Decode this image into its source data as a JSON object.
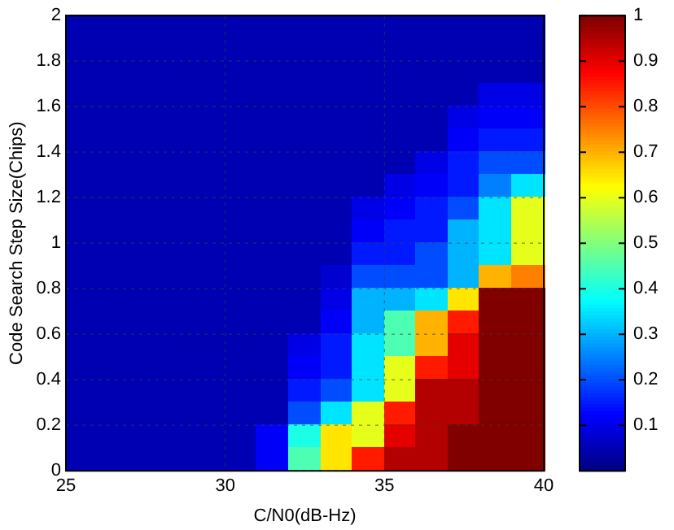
{
  "chart_data": {
    "type": "heatmap",
    "xlabel": "C/N0(dB-Hz)",
    "ylabel": "Code Search Step Size(Chips)",
    "x": [
      25.5,
      26.5,
      27.5,
      28.5,
      29.5,
      30.5,
      31.5,
      32.5,
      33.5,
      34.5,
      35.5,
      36.5,
      37.5,
      38.5,
      39.5
    ],
    "y": [
      1.95,
      1.85,
      1.75,
      1.65,
      1.55,
      1.45,
      1.35,
      1.25,
      1.15,
      1.05,
      0.95,
      0.85,
      0.75,
      0.65,
      0.55,
      0.45,
      0.35,
      0.25,
      0.15,
      0.05
    ],
    "cells": [
      [
        0.05,
        0.05,
        0.05,
        0.05,
        0.05,
        0.05,
        0.05,
        0.05,
        0.05,
        0.05,
        0.05,
        0.05,
        0.05,
        0.05,
        0.05
      ],
      [
        0.05,
        0.05,
        0.05,
        0.05,
        0.05,
        0.05,
        0.05,
        0.05,
        0.05,
        0.05,
        0.05,
        0.05,
        0.05,
        0.05,
        0.05
      ],
      [
        0.05,
        0.05,
        0.05,
        0.05,
        0.05,
        0.05,
        0.05,
        0.05,
        0.05,
        0.05,
        0.05,
        0.05,
        0.05,
        0.05,
        0.05
      ],
      [
        0.05,
        0.05,
        0.05,
        0.05,
        0.05,
        0.05,
        0.05,
        0.05,
        0.05,
        0.05,
        0.05,
        0.05,
        0.05,
        0.1,
        0.1
      ],
      [
        0.05,
        0.05,
        0.05,
        0.05,
        0.05,
        0.05,
        0.05,
        0.05,
        0.05,
        0.05,
        0.05,
        0.05,
        0.1,
        0.12,
        0.12
      ],
      [
        0.05,
        0.05,
        0.05,
        0.05,
        0.05,
        0.05,
        0.05,
        0.05,
        0.05,
        0.05,
        0.05,
        0.05,
        0.12,
        0.15,
        0.15
      ],
      [
        0.05,
        0.05,
        0.05,
        0.05,
        0.05,
        0.05,
        0.05,
        0.05,
        0.05,
        0.05,
        0.05,
        0.1,
        0.15,
        0.2,
        0.2
      ],
      [
        0.05,
        0.05,
        0.05,
        0.05,
        0.05,
        0.05,
        0.05,
        0.05,
        0.05,
        0.05,
        0.1,
        0.12,
        0.15,
        0.25,
        0.35
      ],
      [
        0.05,
        0.05,
        0.05,
        0.05,
        0.05,
        0.05,
        0.05,
        0.05,
        0.05,
        0.1,
        0.12,
        0.15,
        0.2,
        0.35,
        0.6
      ],
      [
        0.05,
        0.05,
        0.05,
        0.05,
        0.05,
        0.05,
        0.05,
        0.05,
        0.05,
        0.12,
        0.15,
        0.15,
        0.3,
        0.35,
        0.6
      ],
      [
        0.05,
        0.05,
        0.05,
        0.05,
        0.05,
        0.05,
        0.05,
        0.05,
        0.05,
        0.15,
        0.15,
        0.2,
        0.3,
        0.35,
        0.6
      ],
      [
        0.05,
        0.05,
        0.05,
        0.05,
        0.05,
        0.05,
        0.05,
        0.05,
        0.08,
        0.2,
        0.2,
        0.2,
        0.3,
        0.7,
        0.75
      ],
      [
        0.05,
        0.05,
        0.05,
        0.05,
        0.05,
        0.05,
        0.05,
        0.05,
        0.1,
        0.3,
        0.3,
        0.35,
        0.65,
        1,
        1
      ],
      [
        0.05,
        0.05,
        0.05,
        0.05,
        0.05,
        0.05,
        0.05,
        0.05,
        0.12,
        0.3,
        0.45,
        0.7,
        0.85,
        1,
        1
      ],
      [
        0.05,
        0.05,
        0.05,
        0.05,
        0.05,
        0.05,
        0.05,
        0.1,
        0.15,
        0.35,
        0.45,
        0.7,
        0.9,
        1,
        1
      ],
      [
        0.05,
        0.05,
        0.05,
        0.05,
        0.05,
        0.05,
        0.05,
        0.12,
        0.15,
        0.35,
        0.6,
        0.85,
        0.9,
        1,
        1
      ],
      [
        0.05,
        0.05,
        0.05,
        0.05,
        0.05,
        0.05,
        0.05,
        0.15,
        0.2,
        0.35,
        0.6,
        0.95,
        0.95,
        1,
        1
      ],
      [
        0.05,
        0.05,
        0.05,
        0.05,
        0.05,
        0.05,
        0.05,
        0.2,
        0.35,
        0.6,
        0.85,
        0.95,
        0.95,
        1,
        1
      ],
      [
        0.05,
        0.05,
        0.05,
        0.05,
        0.05,
        0.05,
        0.12,
        0.4,
        0.65,
        0.6,
        0.9,
        0.95,
        1,
        1,
        1
      ],
      [
        0.05,
        0.05,
        0.05,
        0.05,
        0.05,
        0.05,
        0.12,
        0.45,
        0.65,
        0.85,
        0.95,
        0.95,
        1,
        1,
        1
      ]
    ],
    "xlim": [
      25,
      40
    ],
    "xticks": [
      25,
      30,
      35,
      40
    ],
    "ylim": [
      0,
      2
    ],
    "yticks": [
      0,
      0.2,
      0.4,
      0.6,
      0.8,
      1,
      1.2,
      1.4,
      1.6,
      1.8,
      2
    ],
    "clim": [
      0,
      1
    ],
    "cticks": [
      0.1,
      0.2,
      0.3,
      0.4,
      0.5,
      0.6,
      0.7,
      0.8,
      0.9,
      1
    ],
    "grid": true
  }
}
